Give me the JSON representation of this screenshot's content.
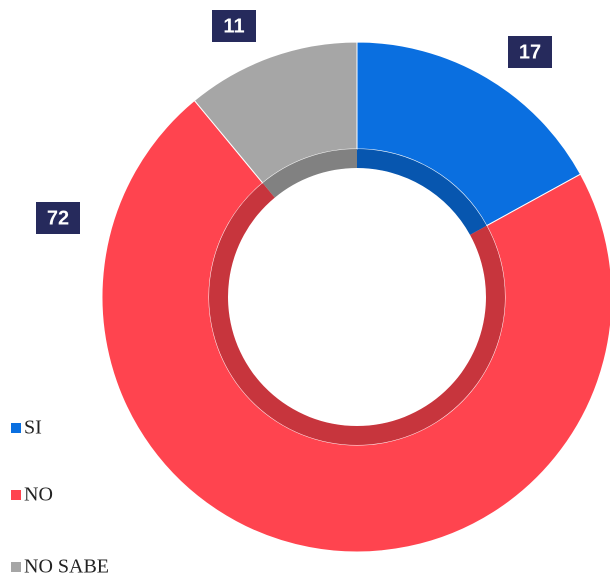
{
  "chart_data": {
    "type": "donut",
    "categories": [
      "SI",
      "NO",
      "NO SABE"
    ],
    "values": [
      17,
      72,
      11
    ],
    "colors": [
      "#0a6fe0",
      "#ff444f",
      "#a6a6a6"
    ]
  }
}
